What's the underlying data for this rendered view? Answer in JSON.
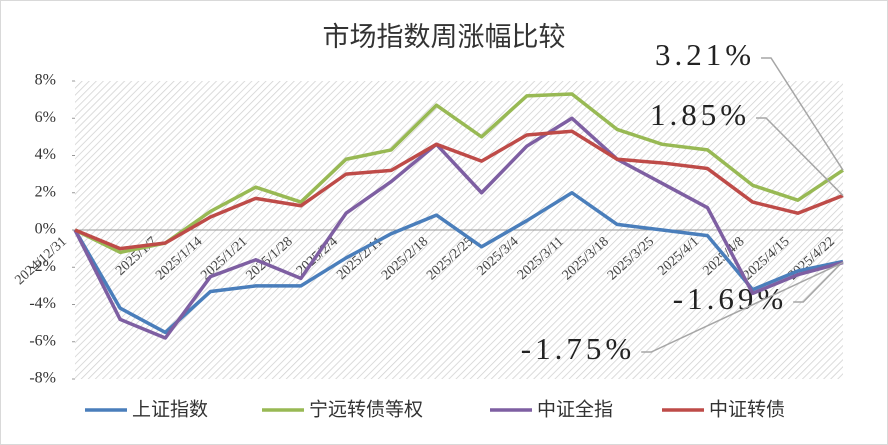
{
  "chart_data": {
    "type": "line",
    "title": "市场指数周涨幅比较",
    "categories": [
      "2024/12/31",
      null,
      "2025/1/7",
      "2025/1/14",
      "2025/1/21",
      "2025/1/28",
      "2025/2/4",
      "2025/2/11",
      "2025/2/18",
      "2025/2/25",
      "2025/3/4",
      "2025/3/11",
      "2025/3/18",
      "2025/3/25",
      "2025/4/1",
      "2025/4/8",
      "2025/4/15",
      "2025/4/22"
    ],
    "series": [
      {
        "name": "上证指数",
        "color": "#4a7ebb",
        "values": [
          0,
          -4.2,
          -5.5,
          -3.3,
          -3.0,
          -3.0,
          -1.5,
          -0.2,
          0.8,
          -0.9,
          0.5,
          2.0,
          0.3,
          0.0,
          -0.3,
          -3.2,
          -2.2,
          -1.69
        ],
        "value_labels": [
          null,
          null,
          null,
          null,
          null,
          null,
          null,
          null,
          null,
          null,
          null,
          null,
          null,
          null,
          null,
          null,
          null,
          "-1.69%"
        ]
      },
      {
        "name": "宁远转债等权",
        "color": "#98b954",
        "values": [
          0,
          -1.2,
          -0.7,
          1.0,
          2.3,
          1.5,
          3.8,
          4.3,
          6.7,
          5.0,
          7.2,
          7.3,
          5.4,
          4.6,
          4.3,
          2.4,
          1.6,
          3.21
        ],
        "value_labels": [
          null,
          null,
          null,
          null,
          null,
          null,
          null,
          null,
          null,
          null,
          null,
          null,
          null,
          null,
          null,
          null,
          null,
          "3.21%"
        ]
      },
      {
        "name": "中证全指",
        "color": "#7e5fa2",
        "values": [
          0,
          -4.8,
          -5.8,
          -2.5,
          -1.6,
          -2.6,
          0.9,
          2.6,
          4.6,
          2.0,
          4.5,
          6.0,
          3.8,
          2.5,
          1.2,
          -3.4,
          -2.4,
          -1.75
        ],
        "value_labels": [
          null,
          null,
          null,
          null,
          null,
          null,
          null,
          null,
          null,
          null,
          null,
          null,
          null,
          null,
          null,
          null,
          null,
          "-1.75%"
        ]
      },
      {
        "name": "中证转债",
        "color": "#be4b48",
        "values": [
          0,
          -1.0,
          -0.7,
          0.7,
          1.7,
          1.3,
          3.0,
          3.2,
          4.6,
          3.7,
          5.1,
          5.3,
          3.8,
          3.6,
          3.3,
          1.5,
          0.9,
          1.85
        ],
        "value_labels": [
          null,
          null,
          null,
          null,
          null,
          null,
          null,
          null,
          null,
          null,
          null,
          null,
          null,
          null,
          null,
          null,
          null,
          "1.85%"
        ]
      }
    ],
    "ylim": [
      -8,
      8
    ],
    "yticks": [
      {
        "value": -8,
        "label": "-8%"
      },
      {
        "value": -6,
        "label": "-6%"
      },
      {
        "value": -4,
        "label": "-4%"
      },
      {
        "value": -2,
        "label": "-2%"
      },
      {
        "value": 0,
        "label": "0%"
      },
      {
        "value": 2,
        "label": "2%"
      },
      {
        "value": 4,
        "label": "4%"
      },
      {
        "value": 6,
        "label": "6%"
      },
      {
        "value": 8,
        "label": "8%"
      }
    ],
    "legend": "bottom"
  }
}
